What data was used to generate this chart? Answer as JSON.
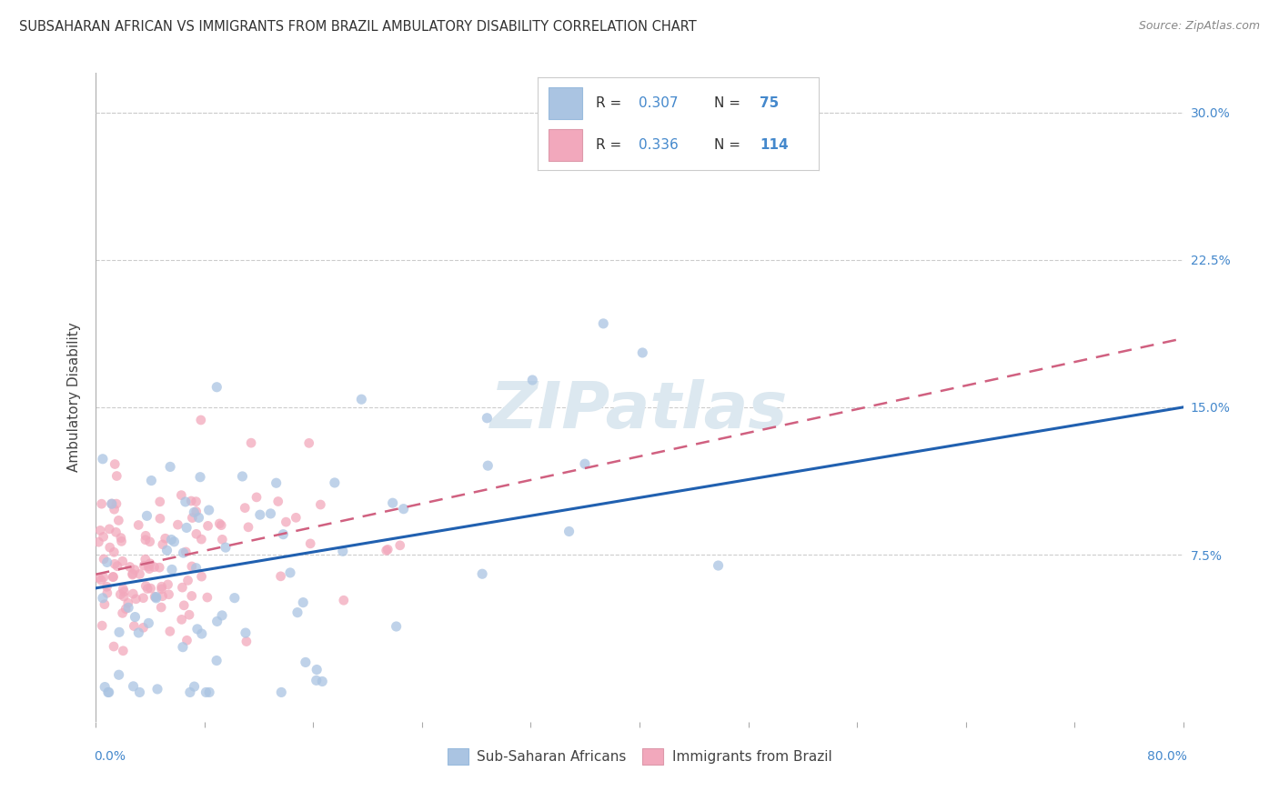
{
  "title": "SUBSAHARAN AFRICAN VS IMMIGRANTS FROM BRAZIL AMBULATORY DISABILITY CORRELATION CHART",
  "source": "Source: ZipAtlas.com",
  "ylabel": "Ambulatory Disability",
  "xlim": [
    0.0,
    0.8
  ],
  "ylim": [
    -0.01,
    0.32
  ],
  "blue_color": "#aac4e2",
  "pink_color": "#f2a8bc",
  "blue_line_color": "#2060b0",
  "pink_line_color": "#d06080",
  "watermark_text": "ZIPatlas",
  "watermark_color": "#dce8f0",
  "grid_color": "#cccccc",
  "tick_color": "#4488cc",
  "title_color": "#333333",
  "source_color": "#888888",
  "legend_r1": "0.307",
  "legend_n1": "75",
  "legend_r2": "0.336",
  "legend_n2": "114",
  "blue_line_x0": 0.0,
  "blue_line_y0": 0.058,
  "blue_line_x1": 0.8,
  "blue_line_y1": 0.15,
  "pink_line_x0": 0.0,
  "pink_line_y0": 0.065,
  "pink_line_x1": 0.8,
  "pink_line_y1": 0.185
}
